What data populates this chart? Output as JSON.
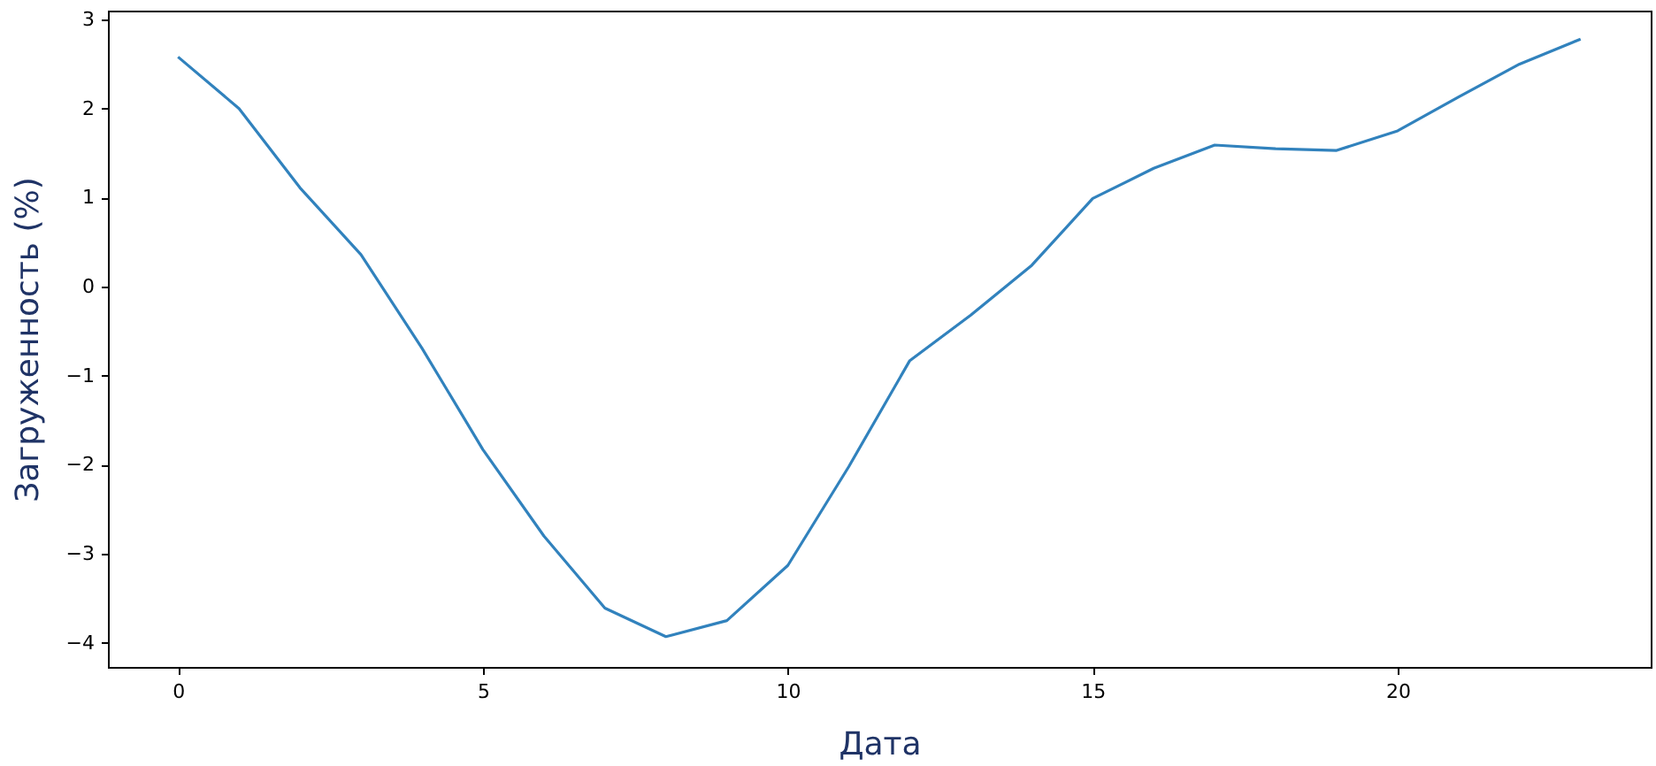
{
  "chart_data": {
    "type": "line",
    "xlabel": "Дата",
    "ylabel": "Загруженность (%)",
    "x": [
      0,
      1,
      2,
      3,
      4,
      5,
      6,
      7,
      8,
      9,
      10,
      11,
      12,
      13,
      14,
      15,
      16,
      17,
      18,
      19,
      20,
      21,
      22,
      23
    ],
    "series": [
      {
        "color": "#3182bd",
        "values": [
          2.58,
          2.0,
          1.11,
          0.36,
          -0.69,
          -1.83,
          -2.8,
          -3.61,
          -3.93,
          -3.75,
          -3.13,
          -2.02,
          -0.83,
          -0.32,
          0.24,
          0.99,
          1.33,
          1.59,
          1.55,
          1.53,
          1.75,
          2.13,
          2.5,
          2.78
        ]
      }
    ],
    "xlim": [
      -1.15,
      24.15
    ],
    "xticks": [
      0,
      5,
      10,
      15,
      20
    ],
    "ylim": [
      -4.27,
      3.1
    ],
    "yticks": [
      {
        "value": -4,
        "label": "−4"
      },
      {
        "value": -3,
        "label": "−3"
      },
      {
        "value": -2,
        "label": "−2"
      },
      {
        "value": -1,
        "label": "−1"
      },
      0,
      1,
      2,
      3
    ],
    "grid": false,
    "marker": "none",
    "line_style": "solid"
  }
}
